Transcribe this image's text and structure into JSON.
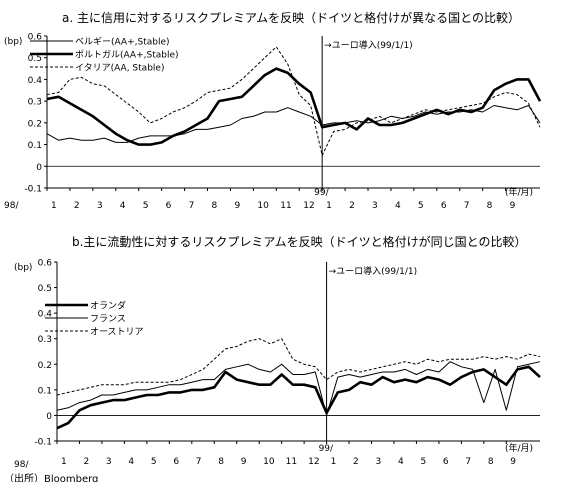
{
  "chart_data": [
    {
      "type": "line",
      "title": "a. 主に信用に対するリスクプレミアムを反映（ドイツと格付けが異なる国との比較）",
      "ylabel": "(bp)",
      "xunit": "(年/月)",
      "ylim": [
        -0.1,
        0.6
      ],
      "yticks": [
        "0.6",
        "0.5",
        "0.4",
        "0.3",
        "0.2",
        "0.1",
        "0",
        "-0.1"
      ],
      "x_year_labels": [
        "98/",
        "99/"
      ],
      "x_month_labels": [
        "1",
        "2",
        "3",
        "4",
        "5",
        "6",
        "7",
        "8",
        "9",
        "10",
        "11",
        "12",
        "1",
        "2",
        "3",
        "4",
        "5",
        "6",
        "7",
        "8",
        "9"
      ],
      "event": {
        "month_index": 12,
        "label": "→ユーロ導入(99/1/1)"
      },
      "legend_position": "top-left",
      "series": [
        {
          "name": "ベルギー(AA+,Stable)",
          "style": "thin",
          "color": "#000000",
          "x": [
            0,
            0.5,
            1,
            1.5,
            2,
            2.5,
            3,
            3.5,
            4,
            4.5,
            5,
            5.5,
            6,
            6.5,
            7,
            7.5,
            8,
            8.5,
            9,
            9.5,
            10,
            10.5,
            11,
            11.5,
            12,
            12.5,
            13,
            13.5,
            14,
            14.5,
            15,
            15.5,
            16,
            16.5,
            17,
            17.5,
            18,
            18.5,
            19,
            19.5,
            20,
            20.5,
            21,
            21.5
          ],
          "values": [
            0.15,
            0.12,
            0.13,
            0.12,
            0.12,
            0.13,
            0.11,
            0.11,
            0.13,
            0.14,
            0.14,
            0.14,
            0.15,
            0.17,
            0.17,
            0.18,
            0.19,
            0.22,
            0.23,
            0.25,
            0.25,
            0.27,
            0.25,
            0.23,
            0.19,
            0.2,
            0.2,
            0.21,
            0.2,
            0.21,
            0.23,
            0.22,
            0.23,
            0.25,
            0.24,
            0.25,
            0.25,
            0.26,
            0.25,
            0.28,
            0.27,
            0.26,
            0.28,
            0.2
          ]
        },
        {
          "name": "ポルトガル(AA+,Stable)",
          "style": "thick",
          "color": "#000000",
          "x": [
            0,
            0.5,
            1,
            1.5,
            2,
            2.5,
            3,
            3.5,
            4,
            4.5,
            5,
            5.5,
            6,
            6.5,
            7,
            7.5,
            8,
            8.5,
            9,
            9.5,
            10,
            10.5,
            11,
            11.5,
            12,
            12.5,
            13,
            13.5,
            14,
            14.5,
            15,
            15.5,
            16,
            16.5,
            17,
            17.5,
            18,
            18.5,
            19,
            19.5,
            20,
            20.5,
            21,
            21.5
          ],
          "values": [
            0.31,
            0.32,
            0.29,
            0.26,
            0.23,
            0.19,
            0.15,
            0.12,
            0.1,
            0.1,
            0.11,
            0.14,
            0.16,
            0.19,
            0.22,
            0.3,
            0.31,
            0.32,
            0.37,
            0.42,
            0.45,
            0.43,
            0.38,
            0.34,
            0.18,
            0.19,
            0.2,
            0.17,
            0.22,
            0.19,
            0.19,
            0.2,
            0.22,
            0.24,
            0.26,
            0.24,
            0.26,
            0.25,
            0.27,
            0.35,
            0.38,
            0.4,
            0.4,
            0.3
          ]
        },
        {
          "name": "イタリア(AA, Stable)",
          "style": "dashed",
          "color": "#000000",
          "x": [
            0,
            0.5,
            1,
            1.5,
            2,
            2.5,
            3,
            3.5,
            4,
            4.5,
            5,
            5.5,
            6,
            6.5,
            7,
            7.5,
            8,
            8.5,
            9,
            9.5,
            10,
            10.5,
            11,
            11.5,
            12,
            12.5,
            13,
            13.5,
            14,
            14.5,
            15,
            15.5,
            16,
            16.5,
            17,
            17.5,
            18,
            18.5,
            19,
            19.5,
            20,
            20.5,
            21,
            21.5
          ],
          "values": [
            0.33,
            0.34,
            0.4,
            0.41,
            0.38,
            0.37,
            0.33,
            0.29,
            0.25,
            0.2,
            0.22,
            0.25,
            0.27,
            0.3,
            0.34,
            0.35,
            0.36,
            0.4,
            0.45,
            0.5,
            0.55,
            0.47,
            0.33,
            0.28,
            0.05,
            0.16,
            0.17,
            0.2,
            0.21,
            0.23,
            0.2,
            0.22,
            0.24,
            0.26,
            0.25,
            0.26,
            0.27,
            0.28,
            0.29,
            0.32,
            0.34,
            0.33,
            0.29,
            0.18
          ]
        }
      ]
    },
    {
      "type": "line",
      "title": "b.主に流動性に対するリスクプレミアムを反映（ドイツと格付けが同じ国との比較）",
      "ylabel": "(bp)",
      "xunit": "(年/月)",
      "ylim": [
        -0.1,
        0.6
      ],
      "yticks": [
        "0.6",
        "0.5",
        "0.4",
        "0.3",
        "0.2",
        "0.1",
        "0",
        "-0.1"
      ],
      "x_year_labels": [
        "98/",
        "99/"
      ],
      "x_month_labels": [
        "1",
        "2",
        "3",
        "4",
        "5",
        "6",
        "7",
        "8",
        "9",
        "10",
        "11",
        "12",
        "1",
        "2",
        "3",
        "4",
        "5",
        "6",
        "7",
        "8",
        "9"
      ],
      "event": {
        "month_index": 12,
        "label": "→ユーロ導入(99/1/1)"
      },
      "legend_position": "top-left",
      "series": [
        {
          "name": "オランダ",
          "style": "thick",
          "color": "#000000",
          "x": [
            0,
            0.5,
            1,
            1.5,
            2,
            2.5,
            3,
            3.5,
            4,
            4.5,
            5,
            5.5,
            6,
            6.5,
            7,
            7.5,
            8,
            8.5,
            9,
            9.5,
            10,
            10.5,
            11,
            11.5,
            12,
            12.5,
            13,
            13.5,
            14,
            14.5,
            15,
            15.5,
            16,
            16.5,
            17,
            17.5,
            18,
            18.5,
            19,
            19.5,
            20,
            20.5,
            21,
            21.5
          ],
          "values": [
            -0.05,
            -0.03,
            0.02,
            0.04,
            0.05,
            0.06,
            0.06,
            0.07,
            0.08,
            0.08,
            0.09,
            0.09,
            0.1,
            0.1,
            0.11,
            0.17,
            0.14,
            0.13,
            0.12,
            0.12,
            0.16,
            0.12,
            0.12,
            0.11,
            0.01,
            0.09,
            0.1,
            0.13,
            0.12,
            0.15,
            0.13,
            0.14,
            0.13,
            0.15,
            0.14,
            0.12,
            0.15,
            0.17,
            0.18,
            0.15,
            0.12,
            0.18,
            0.19,
            0.15
          ]
        },
        {
          "name": "フランス",
          "style": "thin",
          "color": "#000000",
          "x": [
            0,
            0.5,
            1,
            1.5,
            2,
            2.5,
            3,
            3.5,
            4,
            4.5,
            5,
            5.5,
            6,
            6.5,
            7,
            7.5,
            8,
            8.5,
            9,
            9.5,
            10,
            10.5,
            11,
            11.5,
            12,
            12.5,
            13,
            13.5,
            14,
            14.5,
            15,
            15.5,
            16,
            16.5,
            17,
            17.5,
            18,
            18.5,
            19,
            19.5,
            20,
            20.5,
            21,
            21.5
          ],
          "values": [
            0.02,
            0.03,
            0.05,
            0.06,
            0.08,
            0.08,
            0.09,
            0.1,
            0.1,
            0.11,
            0.12,
            0.12,
            0.13,
            0.14,
            0.14,
            0.18,
            0.19,
            0.2,
            0.18,
            0.17,
            0.2,
            0.16,
            0.16,
            0.17,
            0.0,
            0.15,
            0.16,
            0.15,
            0.16,
            0.17,
            0.17,
            0.18,
            0.16,
            0.18,
            0.17,
            0.21,
            0.19,
            0.18,
            0.05,
            0.18,
            0.02,
            0.19,
            0.2,
            0.21
          ]
        },
        {
          "name": "オーストリア",
          "style": "dashed",
          "color": "#000000",
          "x": [
            0,
            0.5,
            1,
            1.5,
            2,
            2.5,
            3,
            3.5,
            4,
            4.5,
            5,
            5.5,
            6,
            6.5,
            7,
            7.5,
            8,
            8.5,
            9,
            9.5,
            10,
            10.5,
            11,
            11.5,
            12,
            12.5,
            13,
            13.5,
            14,
            14.5,
            15,
            15.5,
            16,
            16.5,
            17,
            17.5,
            18,
            18.5,
            19,
            19.5,
            20,
            20.5,
            21,
            21.5
          ],
          "values": [
            0.08,
            0.09,
            0.1,
            0.11,
            0.12,
            0.12,
            0.12,
            0.13,
            0.13,
            0.13,
            0.13,
            0.14,
            0.16,
            0.18,
            0.22,
            0.26,
            0.27,
            0.29,
            0.3,
            0.28,
            0.3,
            0.22,
            0.2,
            0.19,
            0.14,
            0.17,
            0.18,
            0.17,
            0.18,
            0.19,
            0.2,
            0.21,
            0.2,
            0.22,
            0.21,
            0.22,
            0.22,
            0.22,
            0.23,
            0.22,
            0.23,
            0.22,
            0.24,
            0.23
          ]
        }
      ]
    }
  ],
  "footnote": "（出所）Bloomberg"
}
